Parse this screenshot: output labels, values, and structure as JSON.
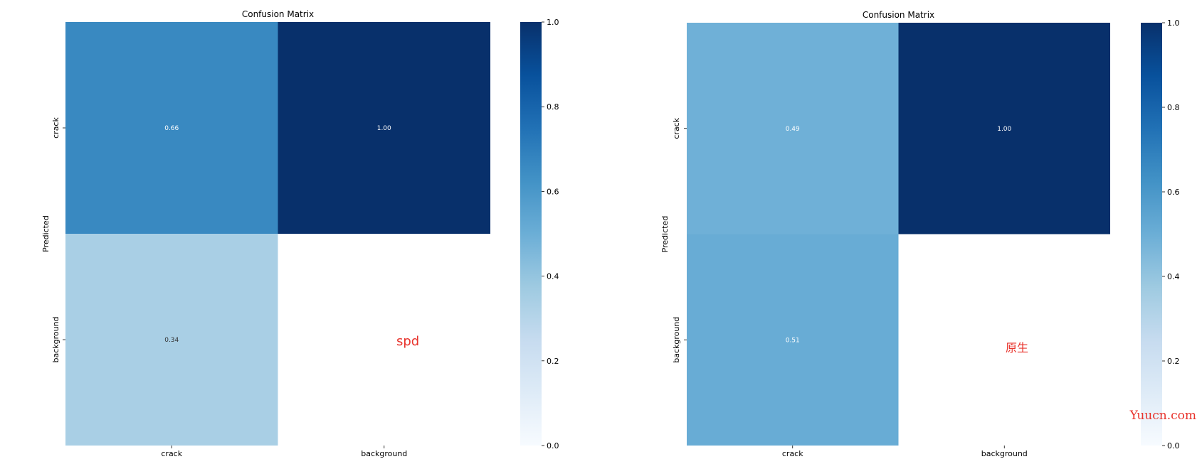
{
  "colors": {
    "low": "#f7fbff",
    "high": "#08306b",
    "annotation": "#ffffff",
    "overlay_label": "#e8332c"
  },
  "chart_data": [
    {
      "type": "heatmap",
      "title": "Confusion Matrix",
      "ylabel": "Predicted",
      "xlabel": "",
      "x_categories": [
        "crack",
        "background"
      ],
      "y_categories": [
        "crack",
        "background"
      ],
      "values": [
        [
          0.66,
          1.0
        ],
        [
          0.34,
          null
        ]
      ],
      "annotations": [
        [
          "0.66",
          "1.00"
        ],
        [
          "0.34",
          ""
        ]
      ],
      "colorbar": {
        "range": [
          0.0,
          1.0
        ],
        "ticks": [
          "0.0",
          "0.2",
          "0.4",
          "0.6",
          "0.8",
          "1.0"
        ]
      },
      "colormap": "Blues",
      "overlay_label": "spd"
    },
    {
      "type": "heatmap",
      "title": "Confusion Matrix",
      "ylabel": "Predicted",
      "xlabel": "",
      "x_categories": [
        "crack",
        "background"
      ],
      "y_categories": [
        "crack",
        "background"
      ],
      "values": [
        [
          0.49,
          1.0
        ],
        [
          0.51,
          null
        ]
      ],
      "annotations": [
        [
          "0.49",
          "1.00"
        ],
        [
          "0.51",
          ""
        ]
      ],
      "colorbar": {
        "range": [
          0.0,
          1.0
        ],
        "ticks": [
          "0.0",
          "0.2",
          "0.4",
          "0.6",
          "0.8",
          "1.0"
        ]
      },
      "colormap": "Blues",
      "overlay_label": "原生"
    }
  ],
  "watermark": "Yuucn.com"
}
